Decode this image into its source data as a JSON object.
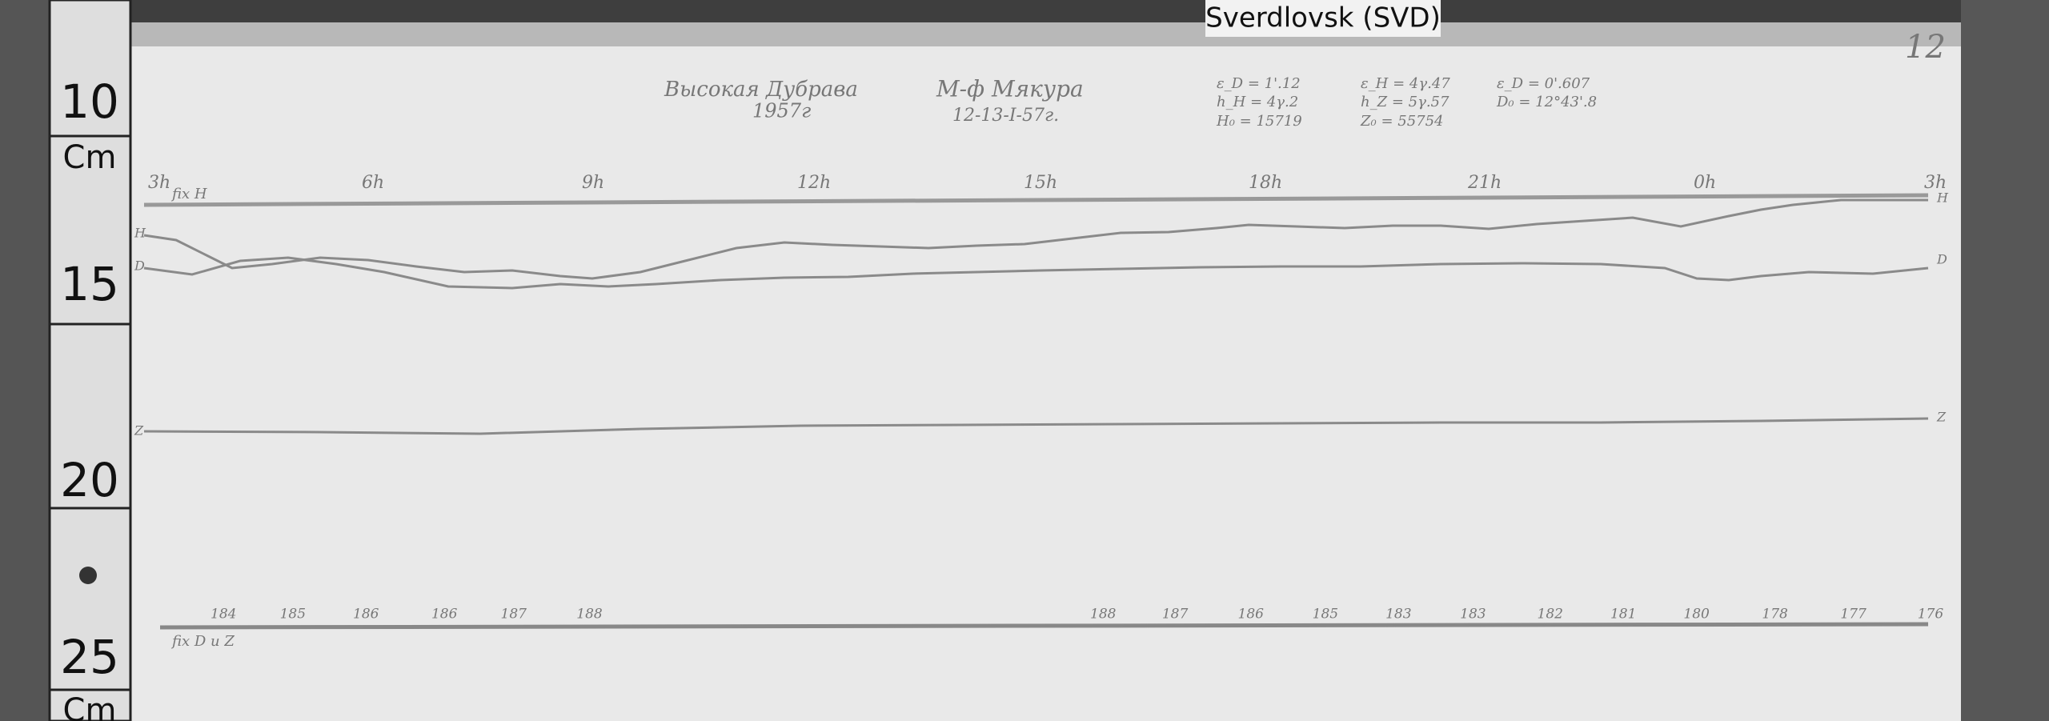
{
  "station_label": "Sverdlovsk (SVD)",
  "ruler": {
    "labels": [
      "10",
      "Cm",
      "15",
      "20",
      "25",
      "Cm"
    ]
  },
  "sheet_number": "12",
  "header": {
    "place": "Высокая Дубрава",
    "year": "1957г",
    "instrument": "М-ф Мякура",
    "dates": "12-13-I-57г.",
    "params": [
      "ε_D = 1'.12",
      "ε_H = 4γ.47",
      "ε_D = 0'.607",
      "h_H = 4γ.2",
      "h_Z = 5γ.57",
      "D₀ = 12°43'.8",
      "H₀ = 15719",
      "Z₀ = 55754"
    ]
  },
  "hours": [
    "3h",
    "6h",
    "9h",
    "12h",
    "15h",
    "18h",
    "21h",
    "0h",
    "3h"
  ],
  "trace_labels": {
    "fix_h": "fix H",
    "fix_dz": "fix D и Z",
    "h": "H",
    "d": "D",
    "z": "Z"
  },
  "temperatures": [
    184,
    185,
    186,
    186,
    187,
    188,
    188,
    187,
    186,
    185,
    183,
    183,
    182,
    181,
    180,
    178,
    177,
    176
  ]
}
